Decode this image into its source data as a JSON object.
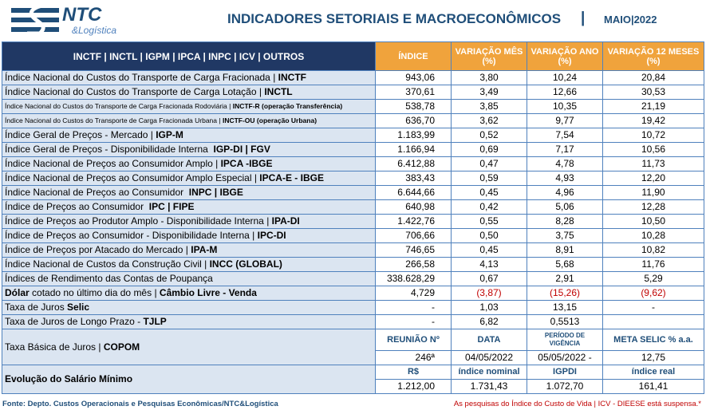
{
  "header": {
    "logo": "NTC",
    "logo_sub": "&Logística",
    "title": "INDICADORES SETORIAIS E MACROECONÔMICOS",
    "date": "MAIO|2022"
  },
  "table": {
    "columns": [
      "INCTF | INCTL | IGPM | IPCA | INPC | ICV | OUTROS",
      "ÍNDICE",
      "VARIAÇÃO MÊS (%)",
      "VARIAÇÃO ANO (%)",
      "VARIAÇÃO 12 MESES (%)"
    ],
    "rows": [
      {
        "label": [
          {
            "t": "Índice Nacional do Custos do Transporte de Carga Fracionada | ",
            "b": false
          },
          {
            "t": "INCTF",
            "b": true
          }
        ],
        "cells": [
          "943,06",
          "3,80",
          "10,24",
          "20,84"
        ]
      },
      {
        "label": [
          {
            "t": "Índice Nacional do Custos do Transporte de Carga Lotação | ",
            "b": false
          },
          {
            "t": "INCTL",
            "b": true
          }
        ],
        "cells": [
          "370,61",
          "3,49",
          "12,66",
          "30,53"
        ]
      },
      {
        "small": true,
        "label": [
          {
            "t": "Índice Nacional do Custos do Transporte de Carga Fracionada Rodoviária | ",
            "b": false
          },
          {
            "t": "INCTF-R (operação Transferência)",
            "b": true
          }
        ],
        "cells": [
          "538,78",
          "3,85",
          "10,35",
          "21,19"
        ]
      },
      {
        "small": true,
        "label": [
          {
            "t": "Índice Nacional do Custos do Transporte de Carga Fracionada Urbana | ",
            "b": false
          },
          {
            "t": "INCTF-OU (operação Urbana)",
            "b": true
          }
        ],
        "cells": [
          "636,70",
          "3,62",
          "9,77",
          "19,42"
        ]
      },
      {
        "label": [
          {
            "t": "Índice Geral de Preços - Mercado | ",
            "b": false
          },
          {
            "t": "IGP-M",
            "b": true
          }
        ],
        "cells": [
          "1.183,99",
          "0,52",
          "7,54",
          "10,72"
        ]
      },
      {
        "label": [
          {
            "t": "Índice Geral de Preços - Disponibilidade Interna  ",
            "b": false
          },
          {
            "t": "IGP-DI | FGV",
            "b": true
          }
        ],
        "cells": [
          "1.166,94",
          "0,69",
          "7,17",
          "10,56"
        ]
      },
      {
        "label": [
          {
            "t": "Índice Nacional de Preços ao Consumidor Amplo | ",
            "b": false
          },
          {
            "t": "IPCA -IBGE",
            "b": true
          }
        ],
        "cells": [
          "6.412,88",
          "0,47",
          "4,78",
          "11,73"
        ]
      },
      {
        "label": [
          {
            "t": "Índice Nacional de Preços ao Consumidor Amplo Especial | ",
            "b": false
          },
          {
            "t": "IPCA-E - IBGE",
            "b": true
          }
        ],
        "cells": [
          "383,43",
          "0,59",
          "4,93",
          "12,20"
        ]
      },
      {
        "label": [
          {
            "t": "Índice Nacional de Preços ao Consumidor  ",
            "b": false
          },
          {
            "t": "INPC | IBGE",
            "b": true
          }
        ],
        "cells": [
          "6.644,66",
          "0,45",
          "4,96",
          "11,90"
        ]
      },
      {
        "label": [
          {
            "t": "Índice de Preços ao Consumidor  ",
            "b": false
          },
          {
            "t": "IPC | FIPE",
            "b": true
          }
        ],
        "cells": [
          "640,98",
          "0,42",
          "5,06",
          "12,28"
        ]
      },
      {
        "label": [
          {
            "t": "Índice de Preços ao Produtor Amplo - Disponibilidade Interna | ",
            "b": false
          },
          {
            "t": "IPA-DI",
            "b": true
          }
        ],
        "cells": [
          "1.422,76",
          "0,55",
          "8,28",
          "10,50"
        ]
      },
      {
        "label": [
          {
            "t": "Índice de Preços ao Consumidor - Disponibilidade Interna | ",
            "b": false
          },
          {
            "t": "IPC-DI",
            "b": true
          }
        ],
        "cells": [
          "706,66",
          "0,50",
          "3,75",
          "10,28"
        ]
      },
      {
        "label": [
          {
            "t": "Índice de Preços por Atacado do Mercado | ",
            "b": false
          },
          {
            "t": "IPA-M",
            "b": true
          }
        ],
        "cells": [
          "746,65",
          "0,45",
          "8,91",
          "10,82"
        ]
      },
      {
        "label": [
          {
            "t": "Índice Nacional de Custos da Construção Civil | ",
            "b": false
          },
          {
            "t": "INCC (GLOBAL)",
            "b": true
          }
        ],
        "cells": [
          "266,58",
          "4,13",
          "5,68",
          "11,76"
        ]
      },
      {
        "label": [
          {
            "t": "Índices de Rendimento das Contas de Poupança",
            "b": false
          }
        ],
        "cells": [
          "338.628,29",
          "0,67",
          "2,91",
          "5,29"
        ]
      },
      {
        "red": true,
        "label": [
          {
            "t": "Dólar",
            "b": true
          },
          {
            "t": " cotado no último dia do mês | ",
            "b": false
          },
          {
            "t": "Câmbio Livre - Venda",
            "b": true
          }
        ],
        "cells": [
          "4,729",
          "(3,87)",
          "(15,26)",
          "(9,62)"
        ]
      },
      {
        "label": [
          {
            "t": "Taxa de Juros ",
            "b": false
          },
          {
            "t": "Selic",
            "b": true
          }
        ],
        "cells": [
          "-",
          "1,03",
          "13,15",
          "-"
        ]
      },
      {
        "label": [
          {
            "t": "Taxa de Juros de Longo Prazo - ",
            "b": false
          },
          {
            "t": "TJLP",
            "b": true
          }
        ],
        "cells": [
          "-",
          "6,82",
          "0,5513",
          null
        ]
      }
    ]
  },
  "copom": {
    "label": [
      {
        "t": "Taxa Básica de Juros | ",
        "b": false
      },
      {
        "t": "COPOM",
        "b": true
      }
    ],
    "heads": [
      "REUNIÃO Nº",
      "DATA",
      "PERÍODO DE VIGÊNCIA",
      "META SELIC % a.a."
    ],
    "cells": [
      "246ª",
      "04/05/2022",
      "05/05/2022 -",
      "12,75"
    ]
  },
  "salario": {
    "label": [
      {
        "t": "Evolução do Salário Mínimo",
        "b": true
      }
    ],
    "heads": [
      "R$",
      "índice nominal",
      "IGPDI",
      "índice real"
    ],
    "cells": [
      "1.212,00",
      "1.731,43",
      "1.072,70",
      "161,41"
    ]
  },
  "footer": {
    "source": "Fonte: Depto. Custos Operacionais e Pesquisas Econômicas/NTC&Logística",
    "note": "As pesquisas do Índice do Custo de Vida | ICV - DIEESE está suspensa.",
    "mark": "*"
  }
}
